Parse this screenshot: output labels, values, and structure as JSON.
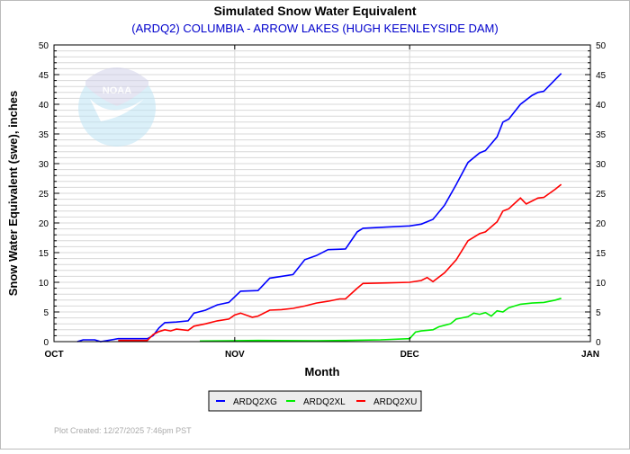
{
  "chart_data": {
    "type": "line",
    "title": "Simulated Snow Water Equivalent",
    "subtitle": "(ARDQ2) COLUMBIA - ARROW LAKES (HUGH KEENLEYSIDE DAM)",
    "xlabel": "Month",
    "ylabel": "Snow Water Equivalent (swe),  inches",
    "xlim": [
      "2025-10-01",
      "2026-01-01"
    ],
    "ylim": [
      0,
      50
    ],
    "x_ticks": [
      {
        "date": "2025-10-01",
        "label": "OCT"
      },
      {
        "date": "2025-11-01",
        "label": "NOV"
      },
      {
        "date": "2025-12-01",
        "label": "DEC"
      },
      {
        "date": "2026-01-01",
        "label": "JAN"
      }
    ],
    "y_ticks": [
      0,
      5,
      10,
      15,
      20,
      25,
      30,
      35,
      40,
      45,
      50
    ],
    "grid": true,
    "legend_position": "bottom",
    "footer": "Plot Created: 12/27/2025 7:46pm PST",
    "watermark": "NOAA",
    "series": [
      {
        "name": "ARDQ2XG",
        "color": "#0000ff",
        "points": [
          [
            "2025-10-05",
            0
          ],
          [
            "2025-10-06",
            0.3
          ],
          [
            "2025-10-08",
            0.3
          ],
          [
            "2025-10-09",
            0
          ],
          [
            "2025-10-12",
            0.5
          ],
          [
            "2025-10-17",
            0.5
          ],
          [
            "2025-10-18",
            1
          ],
          [
            "2025-10-19",
            2.3
          ],
          [
            "2025-10-20",
            3.2
          ],
          [
            "2025-10-22",
            3.3
          ],
          [
            "2025-10-24",
            3.5
          ],
          [
            "2025-10-25",
            4.8
          ],
          [
            "2025-10-27",
            5.3
          ],
          [
            "2025-10-29",
            6.2
          ],
          [
            "2025-10-31",
            6.6
          ],
          [
            "2025-11-02",
            8.5
          ],
          [
            "2025-11-05",
            8.6
          ],
          [
            "2025-11-07",
            10.7
          ],
          [
            "2025-11-09",
            11
          ],
          [
            "2025-11-11",
            11.3
          ],
          [
            "2025-11-13",
            13.8
          ],
          [
            "2025-11-15",
            14.5
          ],
          [
            "2025-11-17",
            15.5
          ],
          [
            "2025-11-20",
            15.6
          ],
          [
            "2025-11-22",
            18.5
          ],
          [
            "2025-11-23",
            19.1
          ],
          [
            "2025-11-27",
            19.3
          ],
          [
            "2025-12-01",
            19.5
          ],
          [
            "2025-12-03",
            19.8
          ],
          [
            "2025-12-05",
            20.6
          ],
          [
            "2025-12-07",
            23
          ],
          [
            "2025-12-09",
            26.5
          ],
          [
            "2025-12-11",
            30.2
          ],
          [
            "2025-12-13",
            31.8
          ],
          [
            "2025-12-14",
            32.2
          ],
          [
            "2025-12-16",
            34.5
          ],
          [
            "2025-12-17",
            37
          ],
          [
            "2025-12-18",
            37.5
          ],
          [
            "2025-12-20",
            40
          ],
          [
            "2025-12-22",
            41.5
          ],
          [
            "2025-12-23",
            42
          ],
          [
            "2025-12-24",
            42.2
          ],
          [
            "2025-12-26",
            44.2
          ],
          [
            "2025-12-27",
            45.2
          ]
        ]
      },
      {
        "name": "ARDQ2XL",
        "color": "#00ee00",
        "points": [
          [
            "2025-10-26",
            0.1
          ],
          [
            "2025-11-05",
            0.2
          ],
          [
            "2025-11-15",
            0.15
          ],
          [
            "2025-11-20",
            0.2
          ],
          [
            "2025-11-26",
            0.3
          ],
          [
            "2025-12-01",
            0.5
          ],
          [
            "2025-12-02",
            1.6
          ],
          [
            "2025-12-03",
            1.8
          ],
          [
            "2025-12-05",
            2.0
          ],
          [
            "2025-12-06",
            2.5
          ],
          [
            "2025-12-08",
            3.0
          ],
          [
            "2025-12-09",
            3.8
          ],
          [
            "2025-12-11",
            4.2
          ],
          [
            "2025-12-12",
            4.8
          ],
          [
            "2025-12-13",
            4.6
          ],
          [
            "2025-12-14",
            4.9
          ],
          [
            "2025-12-15",
            4.3
          ],
          [
            "2025-12-16",
            5.2
          ],
          [
            "2025-12-17",
            5.0
          ],
          [
            "2025-12-18",
            5.7
          ],
          [
            "2025-12-20",
            6.3
          ],
          [
            "2025-12-22",
            6.5
          ],
          [
            "2025-12-24",
            6.6
          ],
          [
            "2025-12-26",
            7.0
          ],
          [
            "2025-12-27",
            7.3
          ]
        ]
      },
      {
        "name": "ARDQ2XU",
        "color": "#ff0000",
        "points": [
          [
            "2025-10-12",
            0.2
          ],
          [
            "2025-10-17",
            0.2
          ],
          [
            "2025-10-18",
            1.2
          ],
          [
            "2025-10-19",
            1.7
          ],
          [
            "2025-10-20",
            2.0
          ],
          [
            "2025-10-21",
            1.8
          ],
          [
            "2025-10-22",
            2.1
          ],
          [
            "2025-10-24",
            1.9
          ],
          [
            "2025-10-25",
            2.6
          ],
          [
            "2025-10-27",
            3.0
          ],
          [
            "2025-10-29",
            3.5
          ],
          [
            "2025-10-31",
            3.8
          ],
          [
            "2025-11-01",
            4.5
          ],
          [
            "2025-11-02",
            4.8
          ],
          [
            "2025-11-04",
            4.1
          ],
          [
            "2025-11-05",
            4.3
          ],
          [
            "2025-11-07",
            5.3
          ],
          [
            "2025-11-09",
            5.4
          ],
          [
            "2025-11-11",
            5.6
          ],
          [
            "2025-11-13",
            6.0
          ],
          [
            "2025-11-15",
            6.5
          ],
          [
            "2025-11-17",
            6.8
          ],
          [
            "2025-11-19",
            7.2
          ],
          [
            "2025-11-20",
            7.2
          ],
          [
            "2025-11-22",
            9.0
          ],
          [
            "2025-11-23",
            9.8
          ],
          [
            "2025-11-27",
            9.9
          ],
          [
            "2025-12-01",
            10.0
          ],
          [
            "2025-12-03",
            10.3
          ],
          [
            "2025-12-04",
            10.8
          ],
          [
            "2025-12-05",
            10.1
          ],
          [
            "2025-12-07",
            11.6
          ],
          [
            "2025-12-09",
            13.8
          ],
          [
            "2025-12-11",
            17
          ],
          [
            "2025-12-13",
            18.2
          ],
          [
            "2025-12-14",
            18.5
          ],
          [
            "2025-12-16",
            20.2
          ],
          [
            "2025-12-17",
            22
          ],
          [
            "2025-12-18",
            22.4
          ],
          [
            "2025-12-20",
            24.2
          ],
          [
            "2025-12-21",
            23.2
          ],
          [
            "2025-12-23",
            24.2
          ],
          [
            "2025-12-24",
            24.3
          ],
          [
            "2025-12-26",
            25.7
          ],
          [
            "2025-12-27",
            26.5
          ]
        ]
      }
    ]
  }
}
